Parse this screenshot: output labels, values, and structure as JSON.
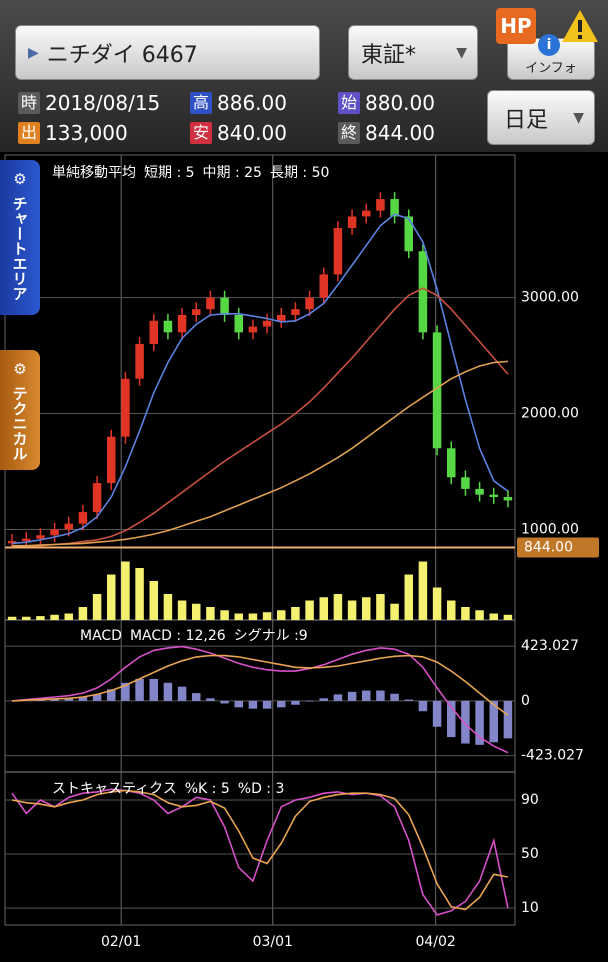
{
  "header": {
    "stock_button": "ニチダイ 6467",
    "market": "東証*",
    "hp_badge": "HP",
    "info_button": "インフォ",
    "period_button": "日足",
    "quote": [
      {
        "tag": "時",
        "value": "2018/08/15"
      },
      {
        "tag": "高",
        "value": "886.00"
      },
      {
        "tag": "始",
        "value": "880.00"
      },
      {
        "tag": "出",
        "value": "133,000"
      },
      {
        "tag": "安",
        "value": "840.00"
      },
      {
        "tag": "終",
        "value": "844.00"
      }
    ],
    "tabs": [
      "チャートエリア",
      "テクニカル"
    ]
  },
  "chart_data": [
    {
      "type": "candlestick",
      "title": "単純移動平均",
      "up_color": "#e03424",
      "down_color": "#56d844",
      "open": [
        880,
        900,
        920,
        950,
        1000,
        1050,
        1150,
        1400,
        1800,
        2300,
        2600,
        2800,
        2700,
        2850,
        2900,
        3000,
        2850,
        2700,
        2750,
        2800,
        2850,
        2900,
        3000,
        3200,
        3600,
        3700,
        3750,
        3850,
        3700,
        3400,
        2700,
        1700,
        1450,
        1350,
        1300,
        1280
      ],
      "close": [
        900,
        920,
        950,
        1000,
        1050,
        1150,
        1400,
        1800,
        2300,
        2600,
        2800,
        2700,
        2850,
        2900,
        3000,
        2850,
        2700,
        2750,
        2800,
        2850,
        2900,
        3000,
        3200,
        3600,
        3700,
        3750,
        3850,
        3700,
        3400,
        2700,
        1700,
        1450,
        1350,
        1300,
        1280,
        1250
      ],
      "high": [
        960,
        980,
        1010,
        1060,
        1110,
        1210,
        1460,
        1860,
        2360,
        2660,
        2860,
        2860,
        2910,
        2960,
        3060,
        3060,
        2910,
        2810,
        2860,
        2910,
        2960,
        3060,
        3260,
        3660,
        3760,
        3810,
        3910,
        3910,
        3760,
        3460,
        2760,
        1760,
        1510,
        1410,
        1360,
        1340
      ],
      "low": [
        820,
        840,
        860,
        890,
        940,
        990,
        1090,
        1340,
        1740,
        2240,
        2540,
        2640,
        2640,
        2790,
        2840,
        2790,
        2640,
        2640,
        2690,
        2740,
        2790,
        2840,
        2940,
        3140,
        3540,
        3640,
        3690,
        3640,
        3340,
        2640,
        1640,
        1390,
        1290,
        1240,
        1220,
        1190
      ],
      "series": [
        {
          "name": "短期 : 5",
          "color": "#5b82e0",
          "values": [
            880,
            890,
            910,
            935,
            964,
            1014,
            1110,
            1280,
            1540,
            1850,
            2180,
            2440,
            2650,
            2770,
            2850,
            2860,
            2860,
            2840,
            2820,
            2790,
            2800,
            2860,
            2950,
            3110,
            3280,
            3450,
            3620,
            3720,
            3680,
            3480,
            3070,
            2590,
            2120,
            1700,
            1420,
            1330
          ]
        },
        {
          "name": "中期 : 25",
          "color": "#c85040",
          "values": [
            850,
            855,
            860,
            870,
            880,
            895,
            910,
            940,
            990,
            1060,
            1140,
            1230,
            1320,
            1410,
            1500,
            1590,
            1670,
            1750,
            1830,
            1910,
            2000,
            2100,
            2220,
            2350,
            2480,
            2620,
            2760,
            2900,
            3020,
            3080,
            3020,
            2900,
            2760,
            2620,
            2480,
            2340
          ]
        },
        {
          "name": "長期 : 50",
          "color": "#e0a050",
          "values": [
            860,
            860,
            865,
            870,
            875,
            880,
            890,
            900,
            915,
            935,
            960,
            990,
            1030,
            1070,
            1110,
            1160,
            1210,
            1260,
            1310,
            1360,
            1420,
            1480,
            1550,
            1620,
            1700,
            1790,
            1880,
            1970,
            2060,
            2140,
            2220,
            2300,
            2360,
            2410,
            2440,
            2450
          ]
        }
      ],
      "ylim": [
        840,
        4230
      ],
      "yticks": [
        {
          "value": 1000,
          "label": "1000.00"
        },
        {
          "value": 2000,
          "label": "2000.00"
        },
        {
          "value": 3000,
          "label": "3000.00"
        }
      ],
      "last_price": {
        "value": 844,
        "label": "844.00"
      },
      "xticks": [
        {
          "value": 7.7,
          "label": "02/01"
        },
        {
          "value": 18.4,
          "label": "03/01"
        },
        {
          "value": 29.9,
          "label": "04/02"
        }
      ]
    },
    {
      "type": "bar",
      "color": "#f4f070",
      "ylim": [
        0,
        100
      ],
      "values": [
        5,
        5,
        6,
        8,
        10,
        20,
        40,
        70,
        90,
        80,
        60,
        40,
        30,
        25,
        20,
        15,
        10,
        10,
        12,
        15,
        20,
        30,
        35,
        40,
        30,
        35,
        40,
        25,
        70,
        90,
        50,
        30,
        20,
        15,
        10,
        8
      ]
    },
    {
      "type": "line",
      "title": "MACD",
      "ylim": [
        -550,
        610
      ],
      "yticks": [
        423.027,
        0,
        -423.027
      ],
      "series": [
        {
          "name": "MACD : 12,26",
          "color": "#d650c8",
          "values": [
            0,
            10,
            20,
            30,
            40,
            60,
            100,
            170,
            260,
            340,
            390,
            410,
            420,
            400,
            370,
            330,
            290,
            260,
            240,
            230,
            230,
            250,
            280,
            320,
            360,
            390,
            410,
            400,
            360,
            260,
            100,
            -50,
            -180,
            -280,
            -350,
            -400
          ]
        },
        {
          "name": "シグナル :9",
          "color": "#eaa452",
          "values": [
            0,
            5,
            10,
            15,
            20,
            30,
            50,
            80,
            120,
            170,
            220,
            270,
            310,
            340,
            350,
            350,
            340,
            320,
            300,
            280,
            260,
            255,
            260,
            270,
            290,
            310,
            330,
            345,
            350,
            340,
            300,
            230,
            150,
            60,
            -30,
            -110
          ]
        }
      ],
      "histogram": {
        "color": "#8286c8",
        "values": [
          0,
          5,
          10,
          15,
          20,
          30,
          50,
          90,
          140,
          170,
          170,
          140,
          110,
          60,
          20,
          -20,
          -50,
          -60,
          -60,
          -50,
          -30,
          -5,
          20,
          50,
          70,
          80,
          80,
          55,
          10,
          -80,
          -200,
          -280,
          -330,
          -340,
          -320,
          -290
        ]
      }
    },
    {
      "type": "line",
      "title": "ストキャスティクス",
      "ylim": [
        -2.5,
        108.5
      ],
      "yticks": [
        90,
        50,
        10
      ],
      "series": [
        {
          "name": "%K : 5",
          "color": "#d650c8",
          "values": [
            95,
            80,
            90,
            85,
            92,
            95,
            96,
            98,
            97,
            95,
            90,
            80,
            85,
            92,
            90,
            70,
            40,
            30,
            60,
            85,
            90,
            92,
            95,
            96,
            94,
            95,
            93,
            85,
            60,
            20,
            5,
            8,
            15,
            30,
            60,
            10
          ]
        },
        {
          "name": "%D : 3",
          "color": "#eaa452",
          "values": [
            90,
            88,
            87,
            85,
            88,
            90,
            94,
            96,
            97,
            96,
            94,
            88,
            85,
            86,
            89,
            84,
            67,
            47,
            43,
            58,
            78,
            89,
            92,
            94,
            95,
            95,
            94,
            91,
            79,
            55,
            28,
            11,
            9,
            18,
            35,
            33
          ]
        }
      ]
    }
  ]
}
